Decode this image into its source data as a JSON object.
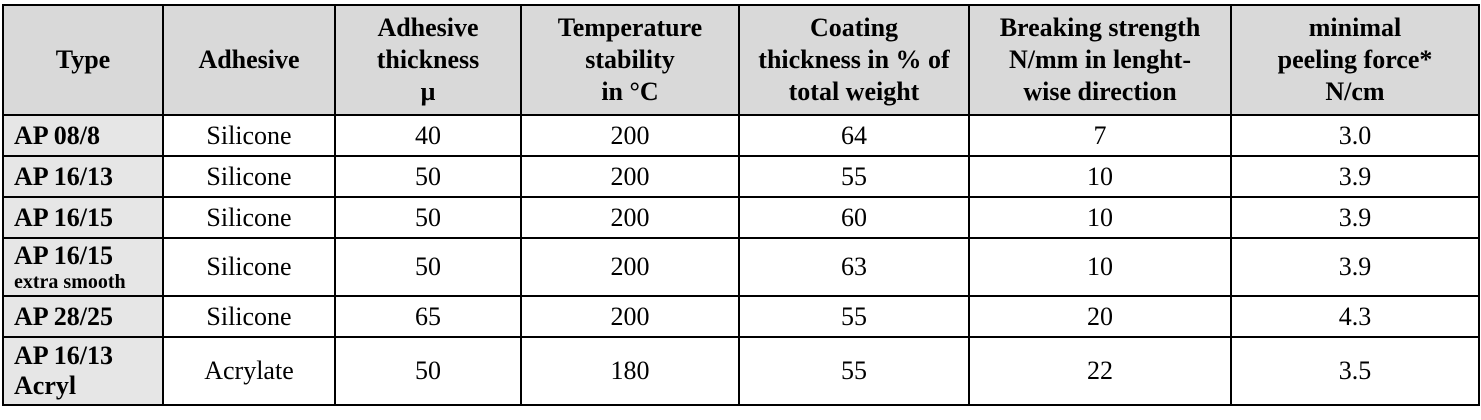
{
  "headers": [
    [
      "Type"
    ],
    [
      "Adhesive"
    ],
    [
      "Adhesive",
      "thickness",
      "µ"
    ],
    [
      "Temperature",
      "stability",
      "in °C"
    ],
    [
      "Coating",
      "thickness in % of",
      "total weight"
    ],
    [
      "Breaking strength",
      "N/mm in lenght-",
      "wise direction"
    ],
    [
      "minimal",
      "peeling force*",
      "N/cm"
    ]
  ],
  "rows": [
    {
      "type": "AP 08/8",
      "type_sub": "",
      "adhesive": "Silicone",
      "thickness": "40",
      "temperature": "200",
      "coating": "64",
      "breaking": "7",
      "peeling": "3.0"
    },
    {
      "type": "AP 16/13",
      "type_sub": "",
      "adhesive": "Silicone",
      "thickness": "50",
      "temperature": "200",
      "coating": "55",
      "breaking": "10",
      "peeling": "3.9"
    },
    {
      "type": "AP 16/15",
      "type_sub": "",
      "adhesive": "Silicone",
      "thickness": "50",
      "temperature": "200",
      "coating": "60",
      "breaking": "10",
      "peeling": "3.9"
    },
    {
      "type": "AP 16/15",
      "type_sub": "extra smooth",
      "adhesive": "Silicone",
      "thickness": "50",
      "temperature": "200",
      "coating": "63",
      "breaking": "10",
      "peeling": "3.9"
    },
    {
      "type": "AP 28/25",
      "type_sub": "",
      "adhesive": "Silicone",
      "thickness": "65",
      "temperature": "200",
      "coating": "55",
      "breaking": "20",
      "peeling": "4.3"
    },
    {
      "type": "AP 16/13",
      "type_sub": "Acryl",
      "adhesive": "Acrylate",
      "thickness": "50",
      "temperature": "180",
      "coating": "55",
      "breaking": "22",
      "peeling": "3.5"
    }
  ]
}
